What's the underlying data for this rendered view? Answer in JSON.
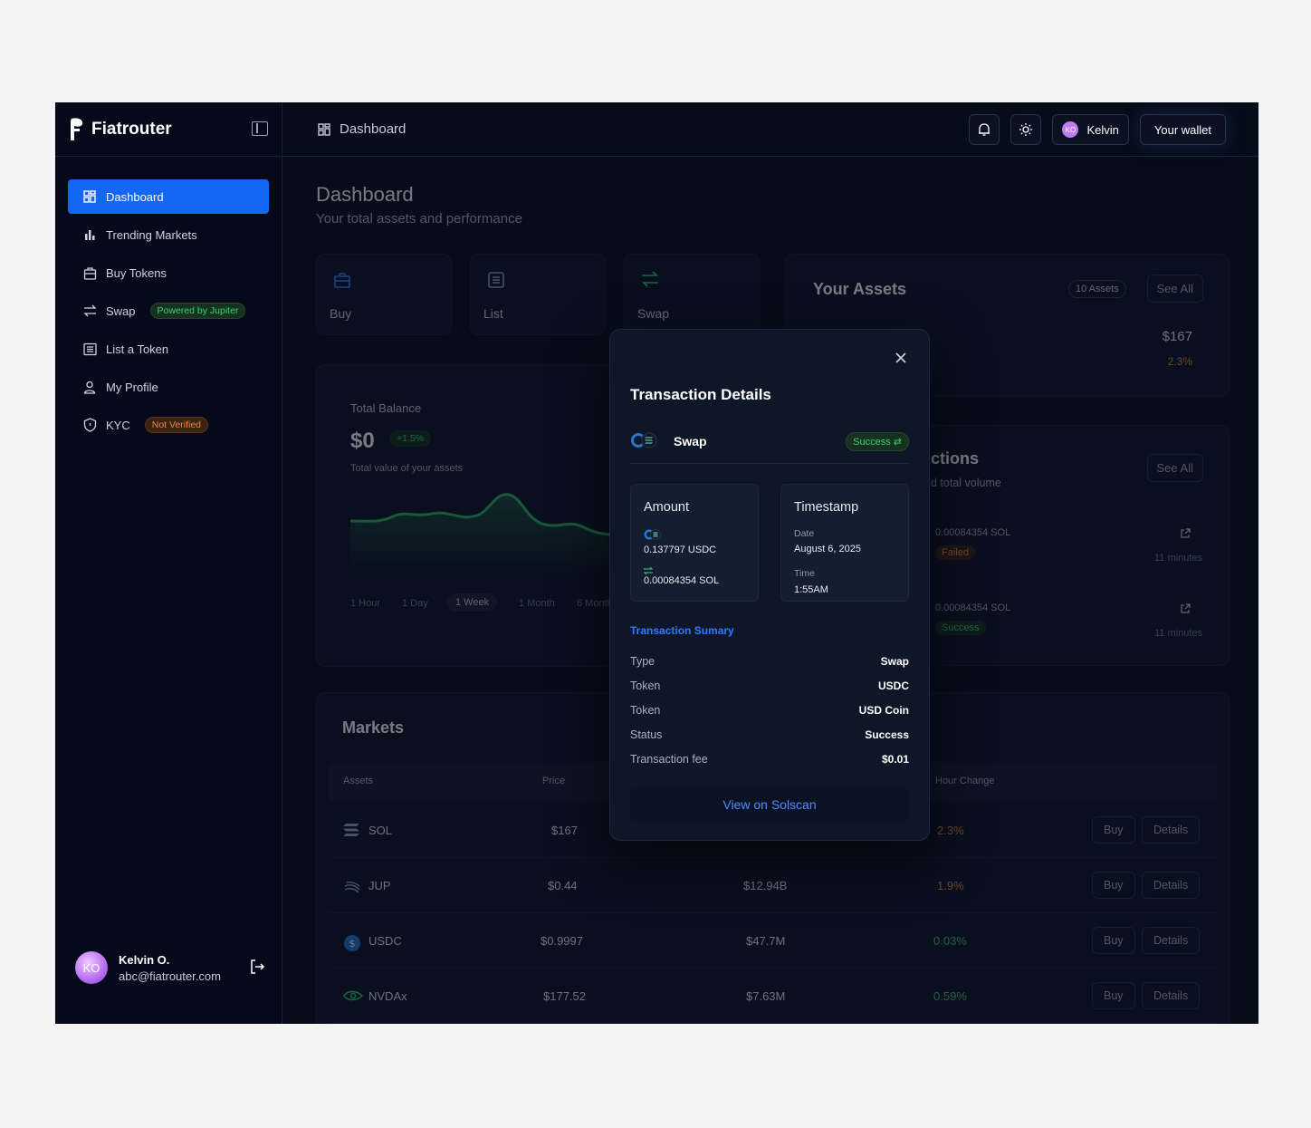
{
  "app": {
    "name": "Fiatrouter"
  },
  "sidebar": {
    "items": [
      {
        "label": "Dashboard",
        "icon": "dashboard-icon",
        "active": true
      },
      {
        "label": "Trending Markets",
        "icon": "bar-chart-icon"
      },
      {
        "label": "Buy Tokens",
        "icon": "bag-icon"
      },
      {
        "label": "Swap",
        "icon": "swap-icon",
        "badge": "Powered by Jupiter"
      },
      {
        "label": "List a Token",
        "icon": "list-icon"
      },
      {
        "label": "My Profile",
        "icon": "user-icon"
      },
      {
        "label": "KYC",
        "icon": "shield-icon",
        "badge": "Not Verified"
      }
    ],
    "user": {
      "initials": "KO",
      "name": "Kelvin O.",
      "email": "abc@fiatrouter.com"
    }
  },
  "topbar": {
    "breadcrumb": "Dashboard",
    "user": "Kelvin",
    "user_initials": "KO",
    "wallet_button": "Your wallet"
  },
  "page": {
    "title": "Dashboard",
    "subtitle": "Your total assets and performance"
  },
  "quick_actions": [
    "Buy",
    "List",
    "Swap"
  ],
  "assets": {
    "title": "Your Assets",
    "count_badge": "10 Assets",
    "see_all": "See All",
    "value": "$167",
    "change": "2.3%"
  },
  "balance": {
    "label": "Total Balance",
    "value": "$0",
    "change": "+1.5%",
    "sub": "Total value of your assets",
    "ranges": [
      "1 Hour",
      "1 Day",
      "1 Week",
      "1 Month",
      "6 Month"
    ],
    "selected_range": "1 Week"
  },
  "transactions": {
    "title_fragment": "ctions",
    "sub_fragment": "d total volume",
    "see_all": "See All",
    "items": [
      {
        "amount": "0.00084354 SOL",
        "status": "Failed",
        "time": "11 minutes"
      },
      {
        "amount": "0.00084354 SOL",
        "status": "Success",
        "time": "11 minutes"
      }
    ]
  },
  "markets": {
    "title": "Markets",
    "columns": [
      "Assets",
      "Price",
      "Hour Change"
    ],
    "rows": [
      {
        "asset": "SOL",
        "price": "$167",
        "volume": "",
        "change": "2.3%",
        "color": "#c2661f"
      },
      {
        "asset": "JUP",
        "price": "$0.44",
        "volume": "$12.94B",
        "change": "1.9%",
        "color": "#c2661f"
      },
      {
        "asset": "USDC",
        "price": "$0.9997",
        "volume": "$47.7M",
        "change": "0.03%",
        "color": "#2fb562"
      },
      {
        "asset": "NVDAx",
        "price": "$177.52",
        "volume": "$7.63M",
        "change": "0.59%",
        "color": "#2fb562"
      }
    ],
    "buy_label": "Buy",
    "details_label": "Details"
  },
  "modal": {
    "title": "Transaction Details",
    "type": "Swap",
    "status": "Success",
    "amount": {
      "header": "Amount",
      "from": "0.137797 USDC",
      "to": "0.00084354 SOL"
    },
    "timestamp": {
      "header": "Timestamp",
      "date_label": "Date",
      "date": "August 6, 2025",
      "time_label": "Time",
      "time": "1:55AM"
    },
    "summary_title": "Transaction Sumary",
    "summary": [
      {
        "k": "Type",
        "v": "Swap"
      },
      {
        "k": "Token",
        "v": "USDC"
      },
      {
        "k": "Token",
        "v": "USD Coin"
      },
      {
        "k": "Status",
        "v": "Success"
      },
      {
        "k": "Transaction fee",
        "v": "$0.01"
      }
    ],
    "view_button": "View on Solscan"
  },
  "colors": {
    "accent": "#1466f5",
    "success": "#35d46f",
    "warning": "#e9883d",
    "background": "#070c1a"
  }
}
